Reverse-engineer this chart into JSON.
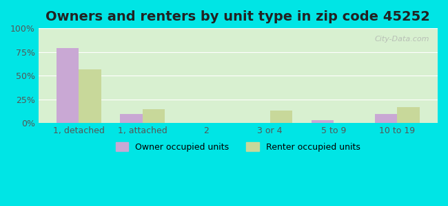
{
  "title": "Owners and renters by unit type in zip code 45252",
  "categories": [
    "1, detached",
    "1, attached",
    "2",
    "3 or 4",
    "5 to 9",
    "10 to 19"
  ],
  "owner_values": [
    79,
    10,
    0.5,
    0,
    3,
    10
  ],
  "renter_values": [
    57,
    15,
    0,
    13,
    0,
    17
  ],
  "owner_color": "#c9a8d4",
  "renter_color": "#c8d89a",
  "background_color": "#d8f0d0",
  "outer_background": "#00e5e5",
  "ylim": [
    0,
    100
  ],
  "yticks": [
    0,
    25,
    50,
    75,
    100
  ],
  "ytick_labels": [
    "0%",
    "25%",
    "50%",
    "75%",
    "100%"
  ],
  "bar_width": 0.35,
  "title_fontsize": 14,
  "legend_owner": "Owner occupied units",
  "legend_renter": "Renter occupied units",
  "watermark": "City-Data.com"
}
